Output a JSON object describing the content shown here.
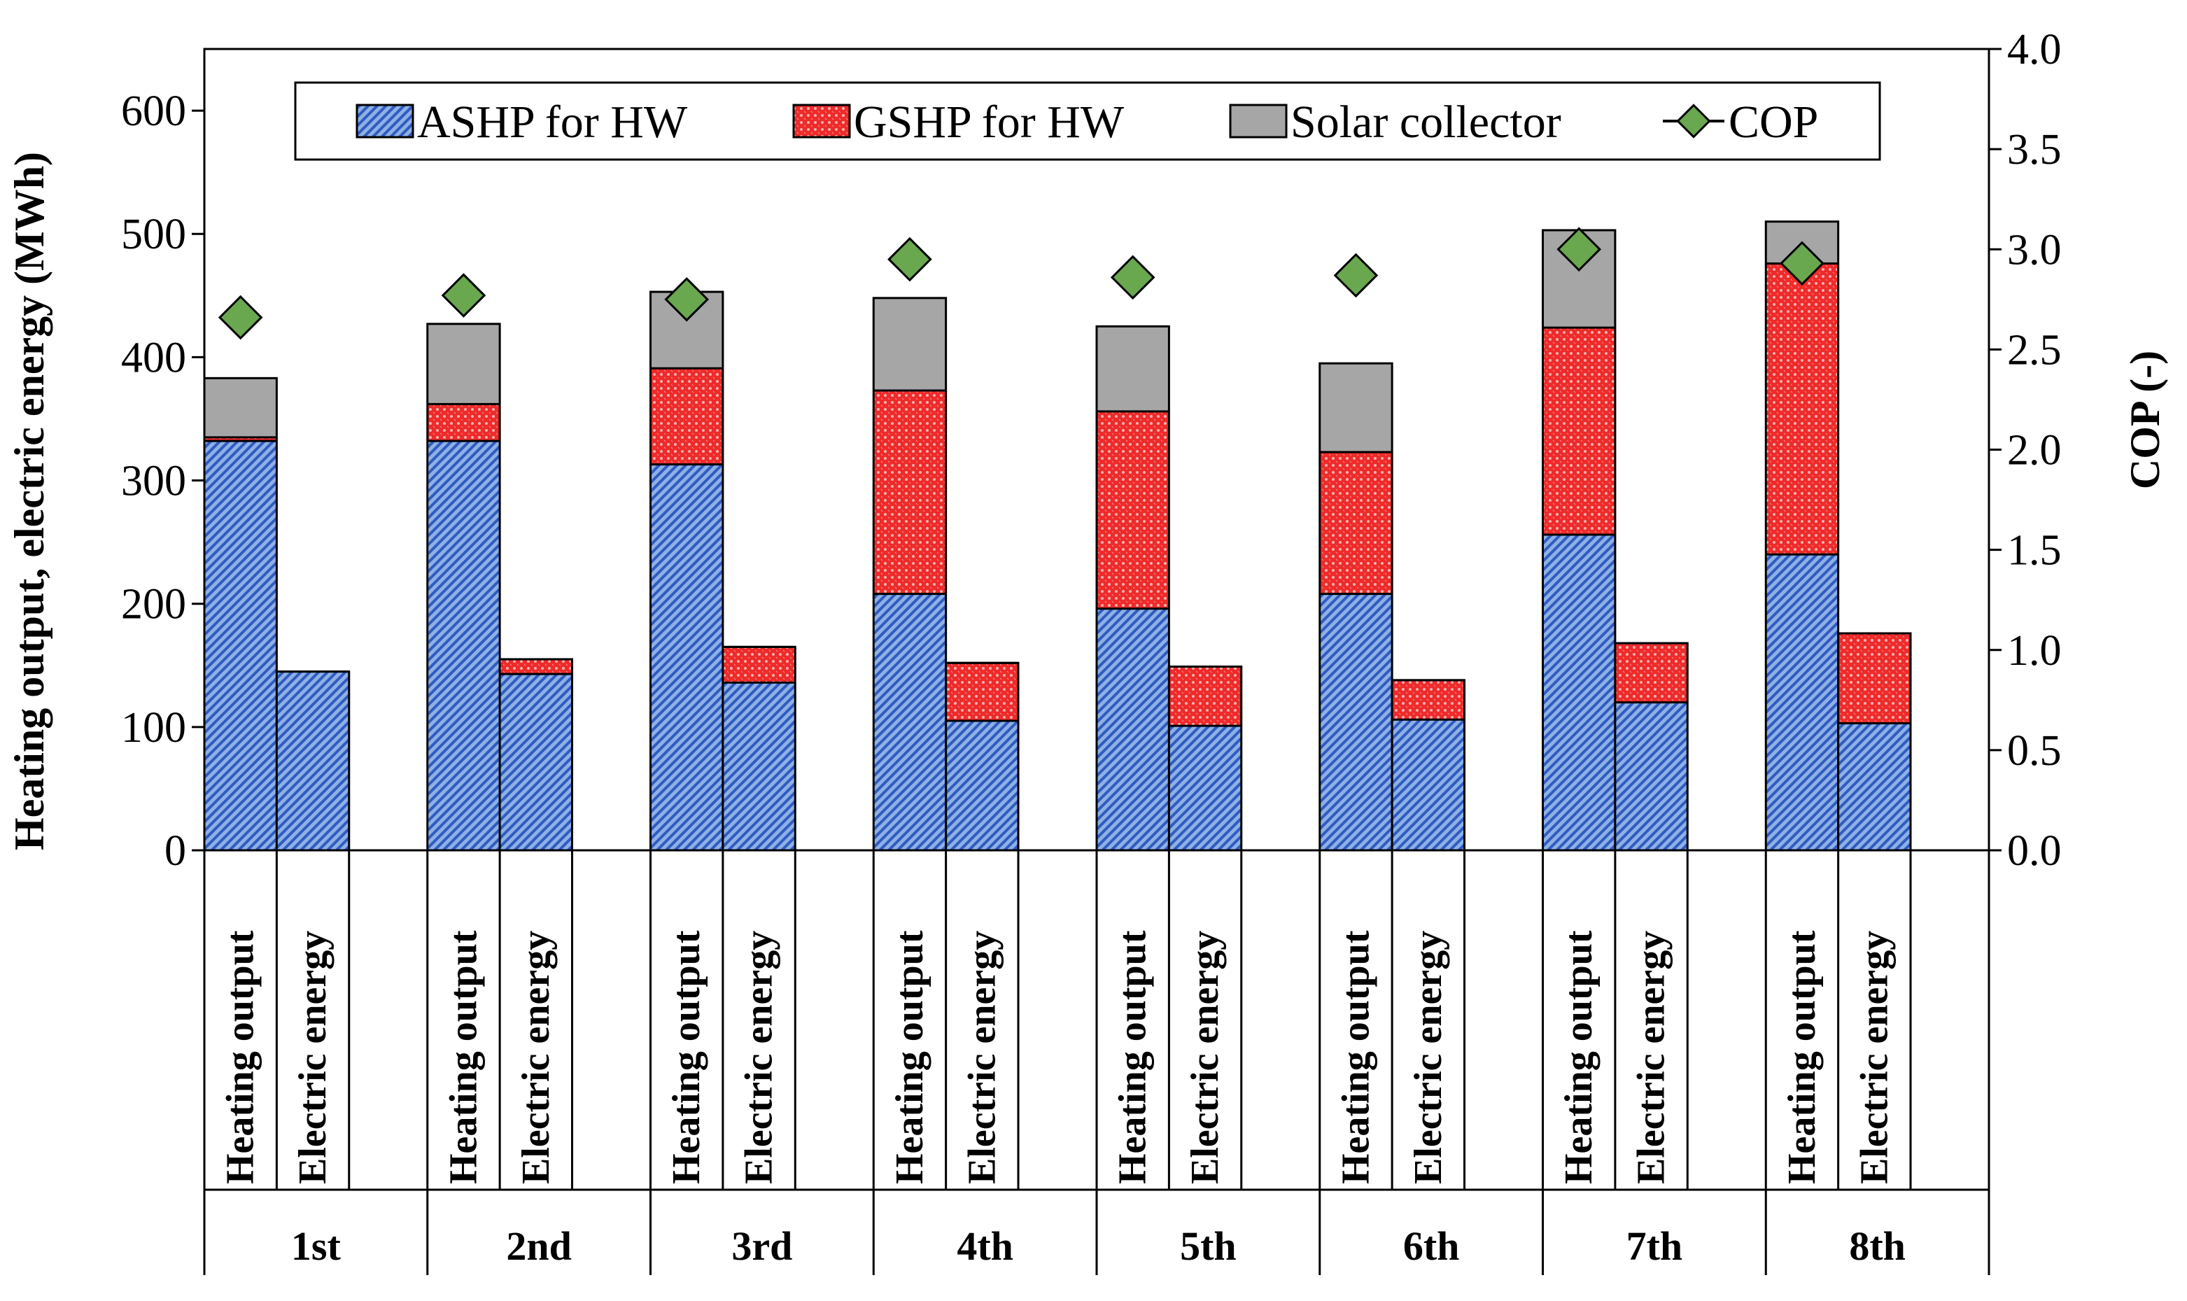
{
  "chart_data": {
    "type": "bar",
    "subtype": "stacked-bar-with-line",
    "groups": [
      "1st",
      "2nd",
      "3rd",
      "4th",
      "5th",
      "6th",
      "7th",
      "8th"
    ],
    "bar_labels": [
      "Heating output",
      "Electric energy"
    ],
    "series": [
      {
        "name": "ASHP for HW",
        "color": "#4a74c9",
        "heating_output": [
          332,
          332,
          313,
          208,
          196,
          208,
          256,
          240
        ],
        "electric_energy": [
          145,
          143,
          136,
          105,
          101,
          106,
          120,
          103
        ]
      },
      {
        "name": "GSHP for HW",
        "color": "#ea3b3b",
        "heating_output": [
          3,
          30,
          78,
          165,
          160,
          115,
          168,
          236
        ],
        "electric_energy": [
          0,
          12,
          29,
          47,
          48,
          32,
          48,
          73
        ]
      },
      {
        "name": "Solar collector",
        "color": "#a6a6a6",
        "heating_output": [
          48,
          65,
          62,
          75,
          69,
          72,
          79,
          34
        ],
        "electric_energy": [
          0,
          0,
          0,
          0,
          0,
          0,
          0,
          0
        ]
      }
    ],
    "cop": {
      "name": "COP",
      "color": "#6aa84f",
      "values": [
        2.66,
        2.77,
        2.75,
        2.95,
        2.86,
        2.87,
        3.0,
        2.93
      ]
    },
    "ylabel_left": "Heating output, electric energy (MWh)",
    "ylabel_right": "COP (-)",
    "ylim_left": [
      0,
      650
    ],
    "yticks_left": [
      "0",
      "100",
      "200",
      "300",
      "400",
      "500",
      "600"
    ],
    "ylim_right": [
      0,
      4.0
    ],
    "yticks_right": [
      "0.0",
      "0.5",
      "1.0",
      "1.5",
      "2.0",
      "2.5",
      "3.0",
      "3.5",
      "4.0"
    ],
    "legend": [
      "ASHP for HW",
      "GSHP for HW",
      "Solar collector",
      "COP"
    ],
    "legend_position": "top"
  }
}
